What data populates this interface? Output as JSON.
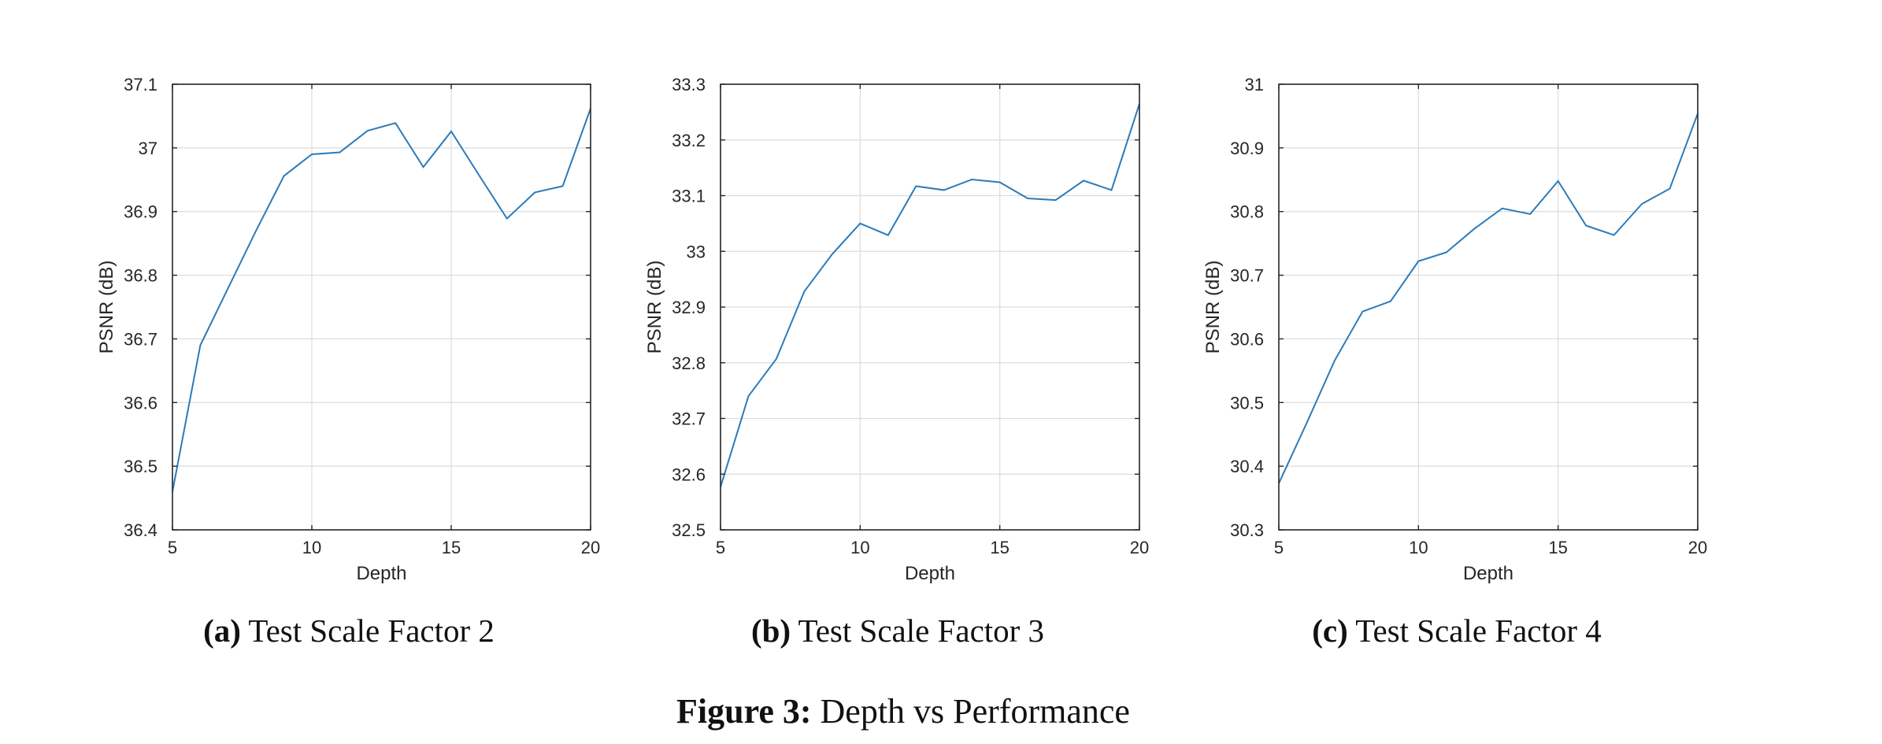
{
  "figure": {
    "caption_label": "Figure 3:",
    "caption_text": " Depth vs Performance"
  },
  "style": {
    "line_color": "#2b7bba",
    "grid_color": "#dcdcdc",
    "axis_color": "#262626"
  },
  "chart_data": [
    {
      "type": "line",
      "subcaption_label": "(a)",
      "subcaption_text": " Test Scale Factor 2",
      "xlabel": "Depth",
      "ylabel": "PSNR (dB)",
      "xlim": [
        5,
        20
      ],
      "ylim": [
        36.4,
        37.1
      ],
      "xticks": [
        "5",
        "10",
        "15",
        "20"
      ],
      "yticks": [
        "36.4",
        "36.5",
        "36.6",
        "36.7",
        "36.8",
        "36.9",
        "37",
        "37.1"
      ],
      "grid": true,
      "series": [
        {
          "x": [
            5,
            6,
            7,
            8,
            9,
            10,
            11,
            12,
            13,
            14,
            15,
            16,
            17,
            18,
            19,
            20
          ],
          "values": [
            36.46,
            36.69,
            36.78,
            36.87,
            36.956,
            36.99,
            36.993,
            37.027,
            37.039,
            36.97,
            37.026,
            36.957,
            36.889,
            36.93,
            36.94,
            37.062
          ]
        }
      ]
    },
    {
      "type": "line",
      "subcaption_label": "(b)",
      "subcaption_text": " Test Scale Factor 3",
      "xlabel": "Depth",
      "ylabel": "PSNR (dB)",
      "xlim": [
        5,
        20
      ],
      "ylim": [
        32.5,
        33.3
      ],
      "xticks": [
        "5",
        "10",
        "15",
        "20"
      ],
      "yticks": [
        "32.5",
        "32.6",
        "32.7",
        "32.8",
        "32.9",
        "33",
        "33.1",
        "33.2",
        "33.3"
      ],
      "grid": true,
      "series": [
        {
          "x": [
            5,
            6,
            7,
            8,
            9,
            10,
            11,
            12,
            13,
            14,
            15,
            16,
            17,
            18,
            19,
            20
          ],
          "values": [
            32.577,
            32.74,
            32.807,
            32.928,
            32.995,
            33.05,
            33.029,
            33.117,
            33.11,
            33.129,
            33.124,
            33.095,
            33.092,
            33.127,
            33.11,
            33.265
          ]
        }
      ]
    },
    {
      "type": "line",
      "subcaption_label": "(c)",
      "subcaption_text": " Test Scale Factor 4",
      "xlabel": "Depth",
      "ylabel": "PSNR (dB)",
      "xlim": [
        5,
        20
      ],
      "ylim": [
        30.3,
        31
      ],
      "xticks": [
        "5",
        "10",
        "15",
        "20"
      ],
      "yticks": [
        "30.3",
        "30.4",
        "30.5",
        "30.6",
        "30.7",
        "30.8",
        "30.9",
        "31"
      ],
      "grid": true,
      "series": [
        {
          "x": [
            5,
            6,
            7,
            8,
            9,
            10,
            11,
            12,
            13,
            14,
            15,
            16,
            17,
            18,
            19,
            20
          ],
          "values": [
            30.373,
            30.468,
            30.566,
            30.643,
            30.659,
            30.722,
            30.736,
            30.773,
            30.805,
            30.796,
            30.848,
            30.778,
            30.763,
            30.812,
            30.836,
            30.954
          ]
        }
      ]
    }
  ]
}
